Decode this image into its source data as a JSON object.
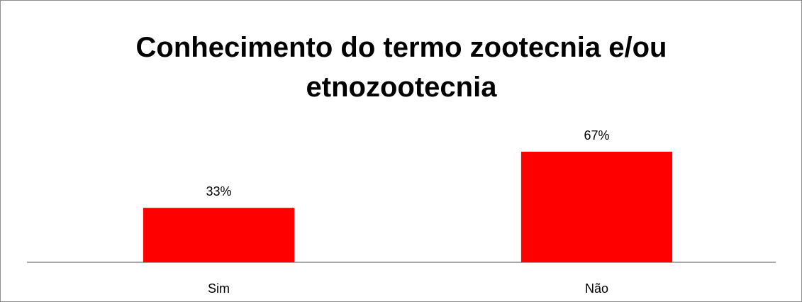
{
  "chart_data": {
    "type": "bar",
    "title": "Conhecimento do termo zootecnia e/ou etnozootecnia",
    "categories": [
      "Sim",
      "Não"
    ],
    "values": [
      33,
      67
    ],
    "value_labels": [
      "33%",
      "67%"
    ],
    "color": "#ff0000"
  }
}
